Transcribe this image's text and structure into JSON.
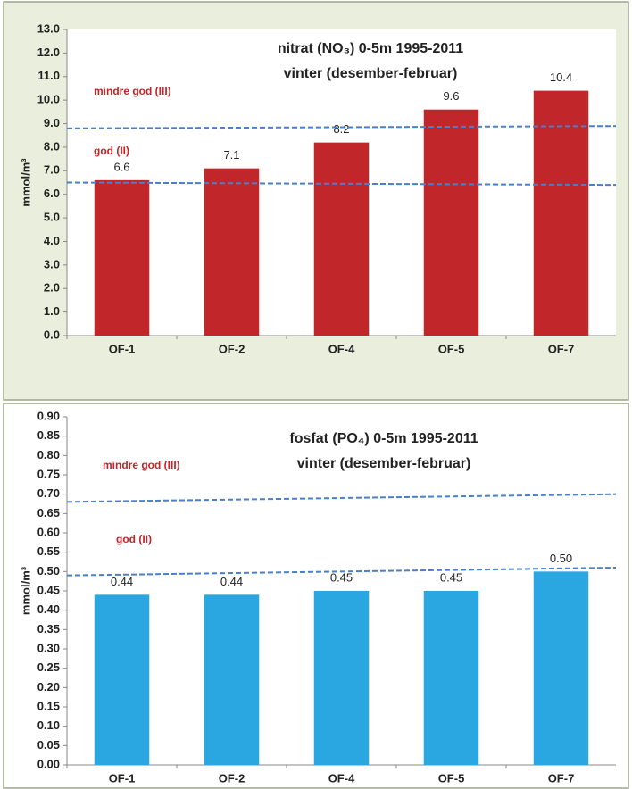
{
  "chart_data": [
    {
      "type": "bar",
      "title": "nitrat (NO₃) 0-5m  1995-2011",
      "subtitle": "vinter (desember-februar)",
      "y_label": "mmol/m³",
      "categories": [
        "OF-1",
        "OF-2",
        "OF-4",
        "OF-5",
        "OF-7"
      ],
      "values": [
        6.6,
        7.1,
        8.2,
        9.6,
        10.4
      ],
      "color": "#c0262a",
      "ylim": [
        0,
        13
      ],
      "yticks": [
        {
          "value": 0,
          "label": "0.0"
        },
        {
          "value": 1,
          "label": "1.0"
        },
        {
          "value": 2,
          "label": "2.0"
        },
        {
          "value": 3,
          "label": "3.0"
        },
        {
          "value": 4,
          "label": "4.0"
        },
        {
          "value": 5,
          "label": "5.0"
        },
        {
          "value": 6,
          "label": "6.0"
        },
        {
          "value": 7,
          "label": "7.0"
        },
        {
          "value": 8,
          "label": "8.0"
        },
        {
          "value": 9,
          "label": "9.0"
        },
        {
          "value": 10,
          "label": "10.0"
        },
        {
          "value": 11,
          "label": "11.0"
        },
        {
          "value": 12,
          "label": "12.0"
        },
        {
          "value": 13,
          "label": "13.0"
        }
      ],
      "reference_lines": [
        {
          "label": "mindre god (III)",
          "values": [
            8.8,
            8.9
          ],
          "color": "#4a7fc9"
        },
        {
          "label": "god (II)",
          "values": [
            6.5,
            6.4
          ],
          "color": "#4a7fc9"
        }
      ]
    },
    {
      "type": "bar",
      "title": "fosfat (PO₄) 0-5m 1995-2011",
      "subtitle": "vinter (desember-februar)",
      "y_label": "mmol/m³",
      "categories": [
        "OF-1",
        "OF-2",
        "OF-4",
        "OF-5",
        "OF-7"
      ],
      "values": [
        0.44,
        0.44,
        0.45,
        0.45,
        0.5
      ],
      "value_labels": [
        "0.44",
        "0.44",
        "0.45",
        "0.45",
        "0.50"
      ],
      "color": "#2aa6e0",
      "ylim": [
        0,
        0.9
      ],
      "yticks": [
        {
          "value": 0,
          "label": "0.00"
        },
        {
          "value": 0.05,
          "label": "0.05"
        },
        {
          "value": 0.1,
          "label": "0.10"
        },
        {
          "value": 0.15,
          "label": "0.15"
        },
        {
          "value": 0.2,
          "label": "0.20"
        },
        {
          "value": 0.25,
          "label": "0.25"
        },
        {
          "value": 0.3,
          "label": "0.30"
        },
        {
          "value": 0.35,
          "label": "0.35"
        },
        {
          "value": 0.4,
          "label": "0.40"
        },
        {
          "value": 0.45,
          "label": "0.45"
        },
        {
          "value": 0.5,
          "label": "0.50"
        },
        {
          "value": 0.55,
          "label": "0.55"
        },
        {
          "value": 0.6,
          "label": "0.60"
        },
        {
          "value": 0.65,
          "label": "0.65"
        },
        {
          "value": 0.7,
          "label": "0.70"
        },
        {
          "value": 0.75,
          "label": "0.75"
        },
        {
          "value": 0.8,
          "label": "0.80"
        },
        {
          "value": 0.85,
          "label": "0.85"
        },
        {
          "value": 0.9,
          "label": "0.90"
        }
      ],
      "reference_lines": [
        {
          "label": "mindre god (III)",
          "values": [
            0.68,
            0.7
          ],
          "color": "#4a7fc9"
        },
        {
          "label": "god (II)",
          "values": [
            0.49,
            0.51
          ],
          "color": "#4a7fc9"
        }
      ]
    }
  ]
}
